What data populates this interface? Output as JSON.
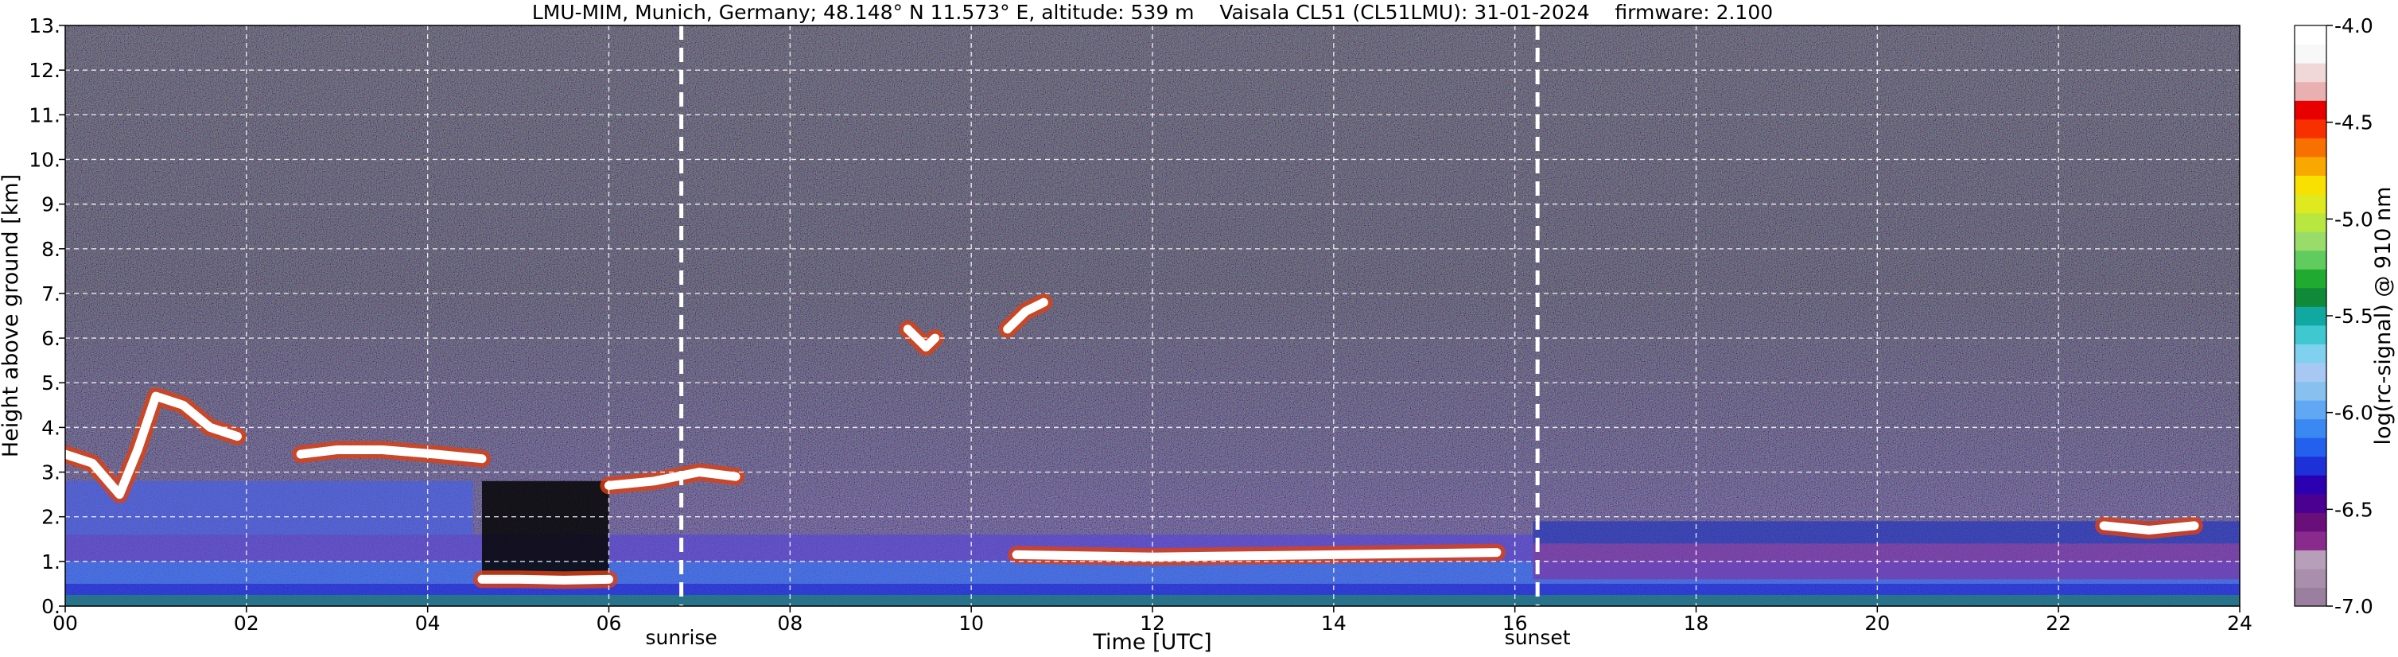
{
  "chart_data": {
    "type": "heatmap",
    "title": "LMU-MIM, Munich, Germany; 48.148° N 11.573° E, altitude: 539 m    Vaisala CL51 (CL51LMU): 31-01-2024    firmware: 2.100",
    "xlabel": "Time [UTC]",
    "ylabel": "Height above ground [km]",
    "xlim": [
      0,
      24
    ],
    "ylim": [
      0,
      13
    ],
    "x_ticks": [
      0,
      2,
      4,
      6,
      8,
      10,
      12,
      14,
      16,
      18,
      20,
      22,
      24
    ],
    "x_tick_labels": [
      "00",
      "02",
      "04",
      "06",
      "08",
      "10",
      "12",
      "14",
      "16",
      "18",
      "20",
      "22",
      "24"
    ],
    "y_ticks": [
      0,
      1,
      2,
      3,
      4,
      5,
      6,
      7,
      8,
      9,
      10,
      11,
      12,
      13
    ],
    "y_tick_labels": [
      "0.",
      "1.",
      "2.",
      "3.",
      "4.",
      "5.",
      "6.",
      "7.",
      "8.",
      "9.",
      "10.",
      "11.",
      "12.",
      "13."
    ],
    "grid": true,
    "colorbar": {
      "label": "log(rc-signal) @ 910 nm",
      "range": [
        -7.0,
        -4.0
      ],
      "ticks": [
        -7.0,
        -6.5,
        -6.0,
        -5.5,
        -5.0,
        -4.5,
        -4.0
      ],
      "tick_labels": [
        "-7.0",
        "-6.5",
        "-6.0",
        "-5.5",
        "-5.0",
        "-4.5",
        "-4.0"
      ],
      "colors": [
        "#9a7f9e",
        "#a98fab",
        "#b79fb9",
        "#8a2a8c",
        "#6a0f7a",
        "#4a0090",
        "#2a00b0",
        "#1e30d8",
        "#2460ee",
        "#3a88f2",
        "#60a8f4",
        "#88c0f0",
        "#a8c8f4",
        "#80d0f0",
        "#40c8d0",
        "#10a8a0",
        "#108a38",
        "#20aa30",
        "#60cc60",
        "#9adc6a",
        "#b8e840",
        "#e0e820",
        "#f8e000",
        "#f8a800",
        "#f87000",
        "#f83000",
        "#e80000",
        "#e8b0b0",
        "#f0d8d8",
        "#f8f8f8",
        "#ffffff"
      ]
    },
    "annotations": {
      "sunrise_time": 6.8,
      "sunset_time": 16.25,
      "sunrise_label": "sunrise",
      "sunset_label": "sunset"
    },
    "layers": [
      {
        "name": "cloud",
        "points": [
          [
            0.0,
            3.4
          ],
          [
            0.3,
            3.2
          ],
          [
            0.6,
            2.5
          ],
          [
            0.8,
            3.5
          ],
          [
            1.0,
            4.7
          ],
          [
            1.3,
            4.5
          ],
          [
            1.6,
            4.0
          ],
          [
            1.9,
            3.8
          ]
        ]
      },
      {
        "name": "cloud",
        "points": [
          [
            2.6,
            3.4
          ],
          [
            3.0,
            3.5
          ],
          [
            3.5,
            3.5
          ],
          [
            4.1,
            3.4
          ],
          [
            4.6,
            3.3
          ]
        ]
      },
      {
        "name": "cloud",
        "points": [
          [
            6.0,
            2.7
          ],
          [
            6.5,
            2.8
          ],
          [
            7.0,
            3.0
          ],
          [
            7.4,
            2.9
          ]
        ]
      },
      {
        "name": "cloud",
        "points": [
          [
            9.3,
            6.2
          ],
          [
            9.5,
            5.8
          ],
          [
            9.6,
            6.0
          ]
        ]
      },
      {
        "name": "cloud",
        "points": [
          [
            10.4,
            6.2
          ],
          [
            10.6,
            6.6
          ],
          [
            10.8,
            6.8
          ]
        ]
      },
      {
        "name": "cloud",
        "points": [
          [
            10.5,
            1.15
          ],
          [
            12.0,
            1.1
          ],
          [
            14.0,
            1.15
          ],
          [
            15.8,
            1.2
          ]
        ]
      },
      {
        "name": "cloud",
        "points": [
          [
            4.6,
            0.6
          ],
          [
            5.0,
            0.6
          ],
          [
            5.5,
            0.58
          ],
          [
            6.0,
            0.6
          ]
        ]
      },
      {
        "name": "cloud",
        "points": [
          [
            22.5,
            1.8
          ],
          [
            23.0,
            1.7
          ],
          [
            23.5,
            1.8
          ]
        ]
      }
    ]
  }
}
